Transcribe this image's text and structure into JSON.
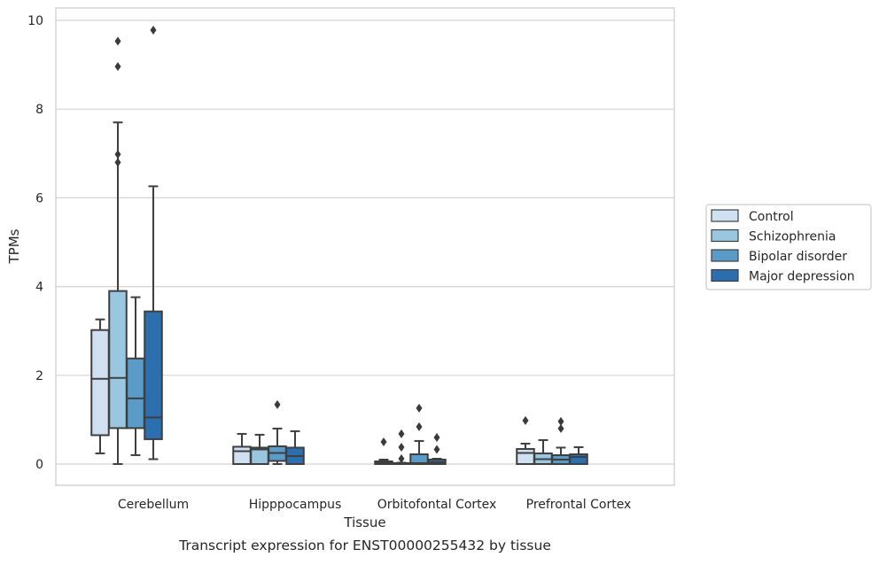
{
  "chart_data": {
    "type": "box",
    "title": "",
    "caption": "Transcript expression for ENST00000255432 by tissue",
    "xlabel": "Tissue",
    "ylabel": "TPMs",
    "ylim": [
      -0.45,
      10.25
    ],
    "yticks": [
      0,
      2,
      4,
      6,
      8,
      10
    ],
    "grid": "horizontal",
    "legend_position": "right",
    "categories": [
      "Cerebellum",
      "Hipppocampus",
      "Orbitofontal Cortex",
      "Prefrontal Cortex"
    ],
    "series": [
      {
        "name": "Control",
        "color": "#cfe0f1",
        "boxes": [
          {
            "whisker_low": 0.24,
            "q1": 0.65,
            "median": 1.92,
            "q3": 3.02,
            "whisker_high": 3.26,
            "outliers": []
          },
          {
            "whisker_low": 0.0,
            "q1": 0.0,
            "median": 0.29,
            "q3": 0.39,
            "whisker_high": 0.68,
            "outliers": []
          },
          {
            "whisker_low": 0.0,
            "q1": 0.0,
            "median": 0.02,
            "q3": 0.06,
            "whisker_high": 0.1,
            "outliers": [
              0.5
            ]
          },
          {
            "whisker_low": 0.0,
            "q1": 0.0,
            "median": 0.25,
            "q3": 0.34,
            "whisker_high": 0.46,
            "outliers": [
              0.98
            ]
          }
        ]
      },
      {
        "name": "Schizophrenia",
        "color": "#9ac7e0",
        "boxes": [
          {
            "whisker_low": 0.0,
            "q1": 0.81,
            "median": 1.94,
            "q3": 3.9,
            "whisker_high": 7.7,
            "outliers": [
              6.8,
              6.98,
              8.96,
              9.53
            ]
          },
          {
            "whisker_low": 0.0,
            "q1": 0.0,
            "median": 0.33,
            "q3": 0.37,
            "whisker_high": 0.66,
            "outliers": []
          },
          {
            "whisker_low": 0.0,
            "q1": 0.0,
            "median": 0.0,
            "q3": 0.02,
            "whisker_high": 0.03,
            "outliers": [
              0.12,
              0.38,
              0.68
            ]
          },
          {
            "whisker_low": 0.0,
            "q1": 0.0,
            "median": 0.11,
            "q3": 0.24,
            "whisker_high": 0.54,
            "outliers": []
          }
        ]
      },
      {
        "name": "Bipolar disorder",
        "color": "#5b9bc8",
        "boxes": [
          {
            "whisker_low": 0.2,
            "q1": 0.81,
            "median": 1.48,
            "q3": 2.38,
            "whisker_high": 3.76,
            "outliers": []
          },
          {
            "whisker_low": 0.0,
            "q1": 0.07,
            "median": 0.25,
            "q3": 0.4,
            "whisker_high": 0.8,
            "outliers": [
              1.34
            ]
          },
          {
            "whisker_low": 0.0,
            "q1": 0.0,
            "median": 0.02,
            "q3": 0.22,
            "whisker_high": 0.52,
            "outliers": [
              0.84,
              1.26
            ]
          },
          {
            "whisker_low": 0.0,
            "q1": 0.0,
            "median": 0.1,
            "q3": 0.2,
            "whisker_high": 0.37,
            "outliers": [
              0.8,
              0.96
            ]
          }
        ]
      },
      {
        "name": "Major depression",
        "color": "#2c6fae",
        "boxes": [
          {
            "whisker_low": 0.11,
            "q1": 0.56,
            "median": 1.05,
            "q3": 3.44,
            "whisker_high": 6.26,
            "outliers": [
              9.78
            ]
          },
          {
            "whisker_low": 0.0,
            "q1": 0.0,
            "median": 0.18,
            "q3": 0.37,
            "whisker_high": 0.74,
            "outliers": []
          },
          {
            "whisker_low": 0.0,
            "q1": 0.0,
            "median": 0.04,
            "q3": 0.1,
            "whisker_high": 0.12,
            "outliers": [
              0.33,
              0.6
            ]
          },
          {
            "whisker_low": 0.0,
            "q1": 0.0,
            "median": 0.16,
            "q3": 0.22,
            "whisker_high": 0.38,
            "outliers": []
          }
        ]
      }
    ]
  }
}
